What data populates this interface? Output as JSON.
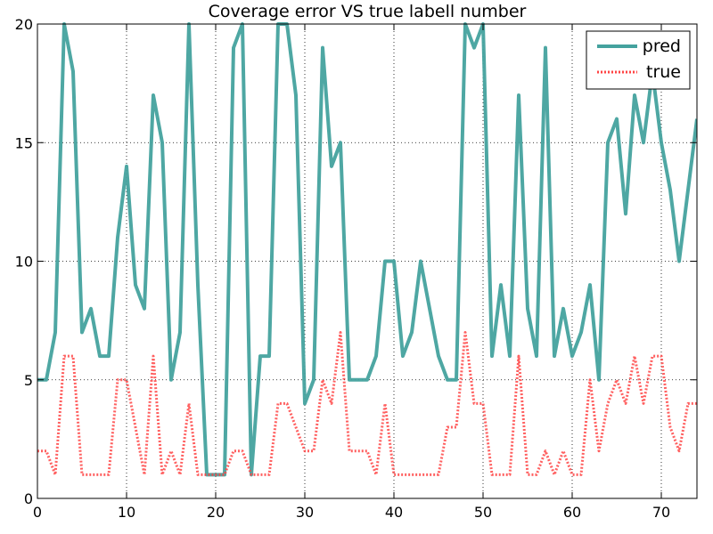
{
  "chart_data": {
    "type": "line",
    "title": "Coverage error VS true labell number",
    "xlabel": "",
    "ylabel": "",
    "xlim": [
      0,
      74
    ],
    "ylim": [
      0,
      20
    ],
    "xticks": [
      0,
      10,
      20,
      30,
      40,
      50,
      60,
      70
    ],
    "yticks": [
      0,
      5,
      10,
      15,
      20
    ],
    "grid": true,
    "legend_position": "top-right",
    "x": [
      0,
      1,
      2,
      3,
      4,
      5,
      6,
      7,
      8,
      9,
      10,
      11,
      12,
      13,
      14,
      15,
      16,
      17,
      18,
      19,
      20,
      21,
      22,
      23,
      24,
      25,
      26,
      27,
      28,
      29,
      30,
      31,
      32,
      33,
      34,
      35,
      36,
      37,
      38,
      39,
      40,
      41,
      42,
      43,
      44,
      45,
      46,
      47,
      48,
      49,
      50,
      51,
      52,
      53,
      54,
      55,
      56,
      57,
      58,
      59,
      60,
      61,
      62,
      63,
      64,
      65,
      66,
      67,
      68,
      69,
      70,
      71,
      72,
      73,
      74
    ],
    "series": [
      {
        "name": "pred",
        "color": "#44a29e",
        "style": "solid",
        "values": [
          5,
          5,
          7,
          20,
          18,
          7,
          8,
          6,
          6,
          11,
          14,
          9,
          8,
          17,
          15,
          5,
          7,
          20,
          9,
          1,
          1,
          1,
          19,
          20,
          1,
          6,
          6,
          20,
          20,
          17,
          4,
          5,
          19,
          14,
          15,
          5,
          5,
          5,
          6,
          10,
          10,
          6,
          7,
          10,
          8,
          6,
          5,
          5,
          20,
          19,
          20,
          6,
          9,
          6,
          17,
          8,
          6,
          19,
          6,
          8,
          6,
          7,
          9,
          5,
          15,
          16,
          12,
          17,
          15,
          18,
          15,
          13,
          10,
          13,
          16
        ]
      },
      {
        "name": "true",
        "color": "#ff4444",
        "style": "dotted",
        "values": [
          2,
          2,
          1,
          6,
          6,
          1,
          1,
          1,
          1,
          5,
          5,
          3,
          1,
          6,
          1,
          2,
          1,
          4,
          1,
          1,
          1,
          1,
          2,
          2,
          1,
          1,
          1,
          4,
          4,
          3,
          2,
          2,
          5,
          4,
          7,
          2,
          2,
          2,
          1,
          4,
          1,
          1,
          1,
          1,
          1,
          1,
          3,
          3,
          7,
          4,
          4,
          1,
          1,
          1,
          6,
          1,
          1,
          2,
          1,
          2,
          1,
          1,
          5,
          2,
          4,
          5,
          4,
          6,
          4,
          6,
          6,
          3,
          2,
          4,
          4
        ]
      }
    ]
  }
}
